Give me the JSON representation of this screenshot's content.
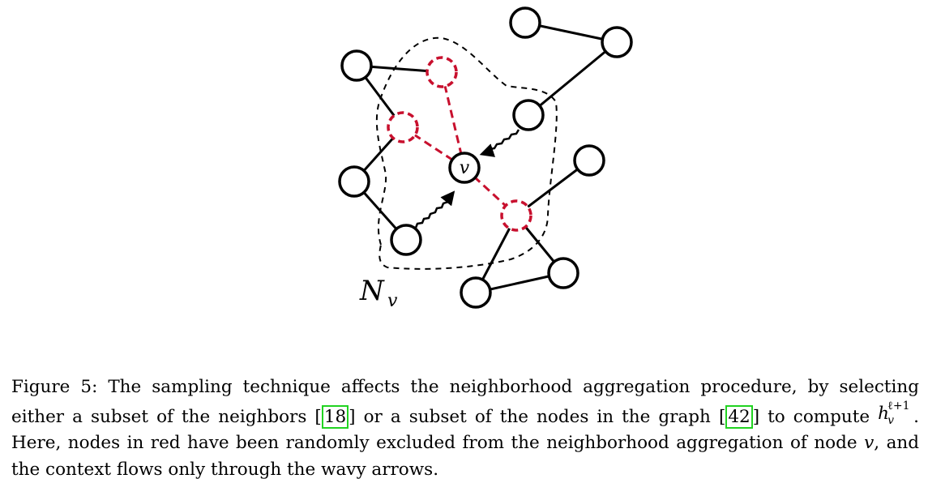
{
  "figure": {
    "center_label": "v",
    "set_label_main": "N",
    "set_label_sub": "v",
    "colors": {
      "stroke": "#000000",
      "excluded": "#c8102e",
      "citation_box": "#21d321"
    },
    "nodes": [
      {
        "id": "top-right-a",
        "kind": "normal"
      },
      {
        "id": "top-right-b",
        "kind": "normal"
      },
      {
        "id": "upper-left",
        "kind": "normal"
      },
      {
        "id": "red-top",
        "kind": "excluded"
      },
      {
        "id": "red-left",
        "kind": "excluded"
      },
      {
        "id": "upper-right-inner",
        "kind": "normal"
      },
      {
        "id": "center-v",
        "kind": "center"
      },
      {
        "id": "mid-left",
        "kind": "normal"
      },
      {
        "id": "right-outer",
        "kind": "normal"
      },
      {
        "id": "red-bottom-right",
        "kind": "excluded"
      },
      {
        "id": "lower-left-inner",
        "kind": "normal"
      },
      {
        "id": "bottom-right-a",
        "kind": "normal"
      },
      {
        "id": "bottom-right-b",
        "kind": "normal"
      }
    ]
  },
  "caption": {
    "part1": "Figure 5: The sampling technique affects the neighborhood aggregation procedure, by selecting either a subset of the neighbors ",
    "cite1": "18",
    "part2": " or a subset of the nodes in the graph ",
    "cite2": "42",
    "part3": " to compute ",
    "math_base": "h",
    "math_sup": "ℓ+1",
    "math_sub": "v",
    "part4": ". Here, nodes in red have been randomly excluded from the neighborhood aggregation of node ",
    "node_var": "v",
    "part5": ", and the context flows only through the wavy arrows."
  }
}
